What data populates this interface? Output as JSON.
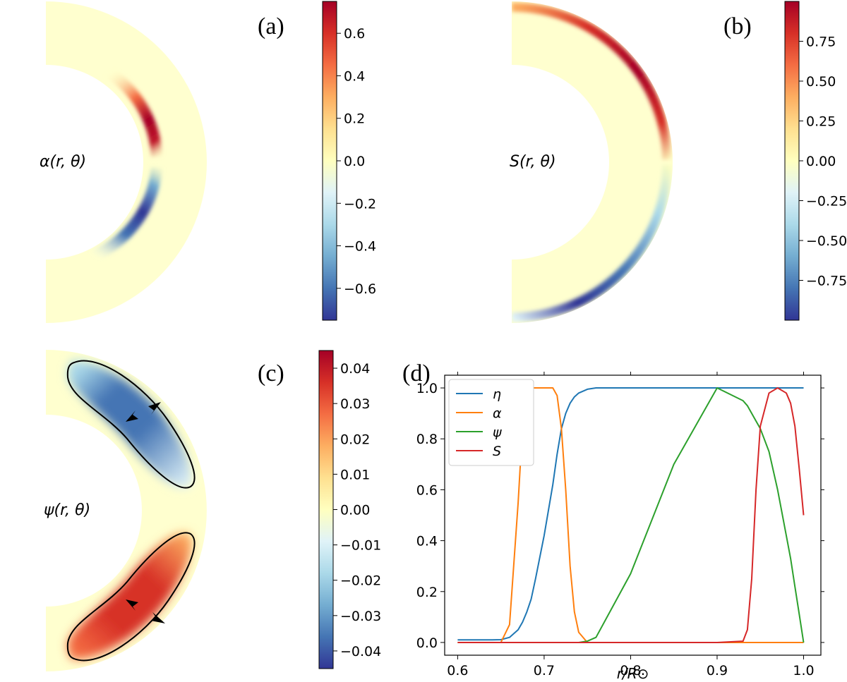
{
  "panels": {
    "a": {
      "label": "(a)",
      "field_label": "α(r, θ)",
      "colorbar": {
        "range": [
          -0.75,
          0.75
        ],
        "ticks": [
          0.6,
          0.4,
          0.2,
          0.0,
          -0.2,
          -0.4,
          -0.6
        ],
        "tick_labels": [
          "0.6",
          "0.4",
          "0.2",
          "0.0",
          "−0.2",
          "−0.4",
          "−0.6"
        ]
      }
    },
    "b": {
      "label": "(b)",
      "field_label": "S(r, θ)",
      "colorbar": {
        "range": [
          -1.0,
          1.0
        ],
        "ticks": [
          0.75,
          0.5,
          0.25,
          0.0,
          -0.25,
          -0.5,
          -0.75
        ],
        "tick_labels": [
          "0.75",
          "0.50",
          "0.25",
          "0.00",
          "−0.25",
          "−0.50",
          "−0.75"
        ]
      }
    },
    "c": {
      "label": "(c)",
      "field_label": "ψ(r, θ)",
      "colorbar": {
        "range": [
          -0.045,
          0.045
        ],
        "ticks": [
          0.04,
          0.03,
          0.02,
          0.01,
          0.0,
          -0.01,
          -0.02,
          -0.03,
          -0.04
        ],
        "tick_labels": [
          "0.04",
          "0.03",
          "0.02",
          "0.01",
          "0.00",
          "−0.01",
          "−0.02",
          "−0.03",
          "−0.04"
        ]
      }
    },
    "d": {
      "label": "(d)"
    }
  },
  "colors": {
    "eta": "#1f77b4",
    "alpha": "#ff7f0e",
    "psi": "#2ca02c",
    "S": "#d62728",
    "colormap": [
      "#313695",
      "#4575b4",
      "#74add1",
      "#abd9e9",
      "#e0f3f8",
      "#ffffbf",
      "#fee090",
      "#fdae61",
      "#f46d43",
      "#d73027",
      "#a50026"
    ]
  },
  "chart_data": [
    {
      "type": "heatmap",
      "name": "alpha(r, theta) meridional map",
      "quantity": "alpha",
      "geometry": "meridional half-annulus, r from 0.6 to 1.0 R_sun",
      "description_values": {
        "max": 0.75,
        "min": -0.75,
        "sign": "positive in northern hemisphere, negative in southern",
        "radial_location": 0.7
      }
    },
    {
      "type": "heatmap",
      "name": "S(r, theta) meridional map",
      "quantity": "S",
      "geometry": "meridional half-annulus, r from 0.6 to 1.0 R_sun",
      "description_values": {
        "max": 1.0,
        "min": -1.0,
        "sign": "positive in northern hemisphere, negative in southern",
        "radial_location": 0.975
      }
    },
    {
      "type": "heatmap",
      "name": "psi(r, theta) meridional map",
      "quantity": "psi",
      "geometry": "meridional half-annulus, r from 0.6 to 1.0 R_sun",
      "description_values": {
        "max": 0.045,
        "min": -0.045,
        "sign": "negative cell in northern hemisphere, positive cell in southern"
      }
    },
    {
      "type": "line",
      "title": "",
      "xlabel": "r/R⊙",
      "ylabel": "",
      "xlim": [
        0.585,
        1.02
      ],
      "ylim": [
        -0.05,
        1.05
      ],
      "xticks": [
        0.6,
        0.7,
        0.8,
        0.9,
        1.0
      ],
      "xtick_labels": [
        "0.6",
        "0.7",
        "0.8",
        "0.9",
        "1.0"
      ],
      "yticks": [
        0.0,
        0.2,
        0.4,
        0.6,
        0.8,
        1.0
      ],
      "ytick_labels": [
        "0.0",
        "0.2",
        "0.4",
        "0.6",
        "0.8",
        "1.0"
      ],
      "legend_position": "top-left",
      "x": [
        0.6,
        0.62,
        0.64,
        0.65,
        0.66,
        0.67,
        0.675,
        0.68,
        0.685,
        0.69,
        0.7,
        0.71,
        0.715,
        0.72,
        0.725,
        0.73,
        0.735,
        0.74,
        0.75,
        0.76,
        0.8,
        0.85,
        0.9,
        0.93,
        0.935,
        0.94,
        0.945,
        0.95,
        0.96,
        0.97,
        0.98,
        0.985,
        0.99,
        0.995,
        1.0
      ],
      "series": [
        {
          "name": "η",
          "values": [
            0.01,
            0.01,
            0.01,
            0.011,
            0.02,
            0.05,
            0.08,
            0.12,
            0.17,
            0.25,
            0.42,
            0.62,
            0.74,
            0.84,
            0.9,
            0.94,
            0.965,
            0.98,
            0.995,
            1.0,
            1.0,
            1.0,
            1.0,
            1.0,
            1.0,
            1.0,
            1.0,
            1.0,
            1.0,
            1.0,
            1.0,
            1.0,
            1.0,
            1.0,
            1.0
          ]
        },
        {
          "name": "α",
          "values": [
            0.0,
            0.0,
            0.0,
            0.0,
            0.07,
            0.55,
            0.85,
            0.98,
            1.0,
            1.0,
            1.0,
            1.0,
            0.97,
            0.84,
            0.6,
            0.3,
            0.12,
            0.04,
            0.0,
            0.0,
            0.0,
            0.0,
            0.0,
            0.0,
            0.0,
            0.0,
            0.0,
            0.0,
            0.0,
            0.0,
            0.0,
            0.0,
            0.0,
            0.0,
            0.0
          ]
        },
        {
          "name": "ψ",
          "values": [
            0.0,
            0.0,
            0.0,
            0.0,
            0.0,
            0.0,
            0.0,
            0.0,
            0.0,
            0.0,
            0.0,
            0.0,
            0.0,
            0.0,
            0.0,
            0.0,
            0.0,
            0.0,
            0.005,
            0.02,
            0.27,
            0.7,
            1.0,
            0.95,
            0.93,
            0.9,
            0.87,
            0.84,
            0.75,
            0.6,
            0.42,
            0.33,
            0.22,
            0.11,
            0.0
          ]
        },
        {
          "name": "S",
          "values": [
            0.0,
            0.0,
            0.0,
            0.0,
            0.0,
            0.0,
            0.0,
            0.0,
            0.0,
            0.0,
            0.0,
            0.0,
            0.0,
            0.0,
            0.0,
            0.0,
            0.0,
            0.0,
            0.0,
            0.0,
            0.0,
            0.0,
            0.0,
            0.005,
            0.05,
            0.25,
            0.6,
            0.85,
            0.98,
            1.0,
            0.98,
            0.94,
            0.85,
            0.68,
            0.5
          ]
        }
      ]
    }
  ]
}
